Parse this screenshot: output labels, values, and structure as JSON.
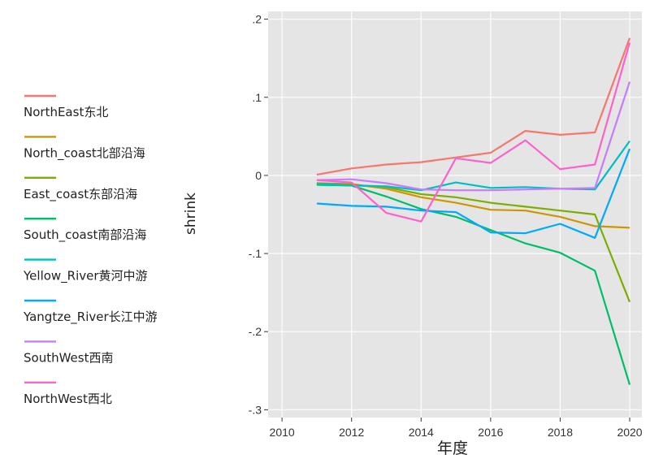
{
  "chart_data": {
    "type": "line",
    "title": "",
    "xlabel": "年度",
    "ylabel": "shrink",
    "xlim": [
      2009.6,
      2020.35
    ],
    "ylim": [
      -0.31,
      0.21
    ],
    "x_ticks": [
      2010,
      2012,
      2014,
      2016,
      2018,
      2020
    ],
    "x_tick_labels": [
      "2010",
      "2012",
      "2014",
      "2016",
      "2018",
      "2020"
    ],
    "y_ticks": [
      0.2,
      0.1,
      0,
      -0.1,
      -0.2,
      -0.3
    ],
    "y_tick_labels": [
      ".2",
      ".1",
      "0",
      "-.1",
      "-.2",
      "-.3"
    ],
    "grid": true,
    "legend_position": "left",
    "x": [
      2011,
      2012,
      2013,
      2014,
      2015,
      2016,
      2017,
      2018,
      2019,
      2020
    ],
    "series": [
      {
        "name": "NorthEast东北",
        "color": "#F8766D",
        "values": [
          0.001,
          0.009,
          0.014,
          0.017,
          0.023,
          0.029,
          0.057,
          0.052,
          0.055,
          0.176
        ]
      },
      {
        "name": "North_coast北部沿海",
        "color": "#CD9600",
        "values": [
          -0.01,
          -0.011,
          -0.017,
          -0.028,
          -0.035,
          -0.044,
          -0.045,
          -0.053,
          -0.065,
          -0.067
        ]
      },
      {
        "name": "East_coast东部沿海",
        "color": "#7CAE00",
        "values": [
          -0.01,
          -0.012,
          -0.015,
          -0.024,
          -0.028,
          -0.035,
          -0.04,
          -0.045,
          -0.05,
          -0.162
        ]
      },
      {
        "name": "South_coast南部沿海",
        "color": "#00BE67",
        "values": [
          -0.012,
          -0.013,
          -0.027,
          -0.043,
          -0.053,
          -0.07,
          -0.087,
          -0.099,
          -0.122,
          -0.268
        ]
      },
      {
        "name": "Yellow_River黄河中游",
        "color": "#00BFC4",
        "values": [
          -0.011,
          -0.013,
          -0.014,
          -0.019,
          -0.009,
          -0.016,
          -0.015,
          -0.017,
          -0.018,
          0.044
        ]
      },
      {
        "name": "Yangtze_River长江中游",
        "color": "#00A9FF",
        "values": [
          -0.036,
          -0.039,
          -0.04,
          -0.045,
          -0.047,
          -0.073,
          -0.074,
          -0.062,
          -0.08,
          0.034
        ]
      },
      {
        "name": "SouthWest西南",
        "color": "#C77CFF",
        "values": [
          -0.006,
          -0.005,
          -0.01,
          -0.018,
          -0.019,
          -0.019,
          -0.018,
          -0.017,
          -0.016,
          0.12
        ]
      },
      {
        "name": "NorthWest西北",
        "color": "#FF61CC",
        "values": [
          -0.006,
          -0.009,
          -0.048,
          -0.059,
          0.022,
          0.016,
          0.045,
          0.008,
          0.014,
          0.17
        ]
      }
    ]
  }
}
